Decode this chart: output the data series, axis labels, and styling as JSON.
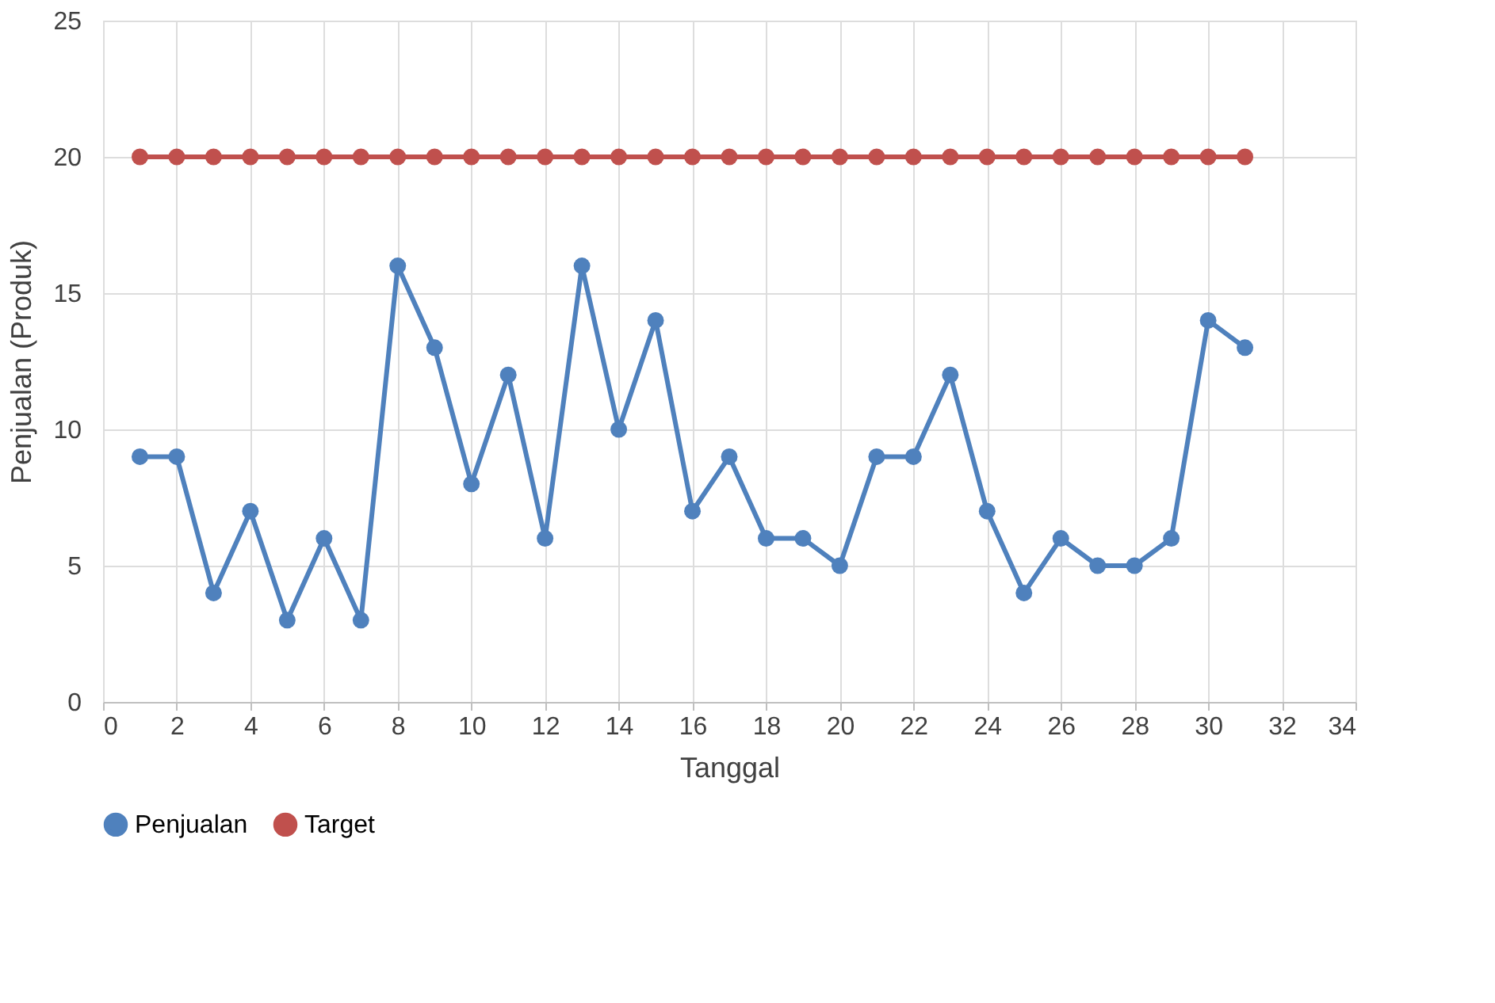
{
  "chart_data": {
    "type": "line",
    "xlabel": "Tanggal",
    "ylabel": "Penjualan (Produk)",
    "x": [
      1,
      2,
      3,
      4,
      5,
      6,
      7,
      8,
      9,
      10,
      11,
      12,
      13,
      14,
      15,
      16,
      17,
      18,
      19,
      20,
      21,
      22,
      23,
      24,
      25,
      26,
      27,
      28,
      29,
      30,
      31
    ],
    "series": [
      {
        "name": "Penjualan",
        "color": "#4f81bd",
        "values": [
          9,
          9,
          4,
          7,
          3,
          6,
          3,
          16,
          13,
          8,
          12,
          6,
          16,
          10,
          14,
          7,
          9,
          6,
          6,
          5,
          9,
          9,
          12,
          7,
          4,
          6,
          5,
          5,
          6,
          14,
          13
        ]
      },
      {
        "name": "Target",
        "color": "#c0504d",
        "values": [
          20,
          20,
          20,
          20,
          20,
          20,
          20,
          20,
          20,
          20,
          20,
          20,
          20,
          20,
          20,
          20,
          20,
          20,
          20,
          20,
          20,
          20,
          20,
          20,
          20,
          20,
          20,
          20,
          20,
          20,
          20
        ]
      }
    ],
    "xlim": [
      0,
      34
    ],
    "xticks": [
      0,
      2,
      4,
      6,
      8,
      10,
      12,
      14,
      16,
      18,
      20,
      22,
      24,
      26,
      28,
      30,
      32,
      34
    ],
    "ylim": [
      0,
      25
    ],
    "yticks": [
      0,
      5,
      10,
      15,
      20,
      25
    ],
    "grid": true,
    "legend": "bottom",
    "marker": "circle",
    "line_style": "solid"
  }
}
